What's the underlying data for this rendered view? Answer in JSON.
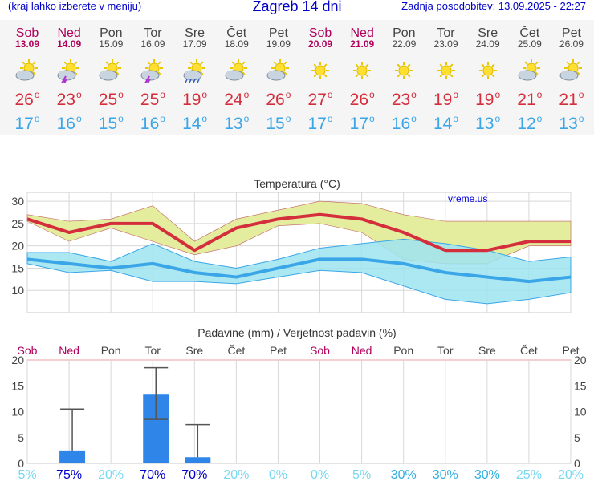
{
  "header": {
    "menu_hint": "(kraj lahko izberete v meniju)",
    "title": "Zagreb 14 dni",
    "updated": "Zadnja posodobitev: 13.09.2025 - 22:27"
  },
  "days": [
    {
      "name": "Sob",
      "date": "13.09",
      "weekend": true,
      "icon": "sun-cloud-icon",
      "max": "26",
      "min": "17"
    },
    {
      "name": "Ned",
      "date": "14.09",
      "weekend": true,
      "icon": "sun-thunder-icon",
      "max": "23",
      "min": "16"
    },
    {
      "name": "Pon",
      "date": "15.09",
      "weekend": false,
      "icon": "sun-cloud-icon",
      "max": "25",
      "min": "15"
    },
    {
      "name": "Tor",
      "date": "16.09",
      "weekend": false,
      "icon": "sun-thunder-icon",
      "max": "25",
      "min": "16"
    },
    {
      "name": "Sre",
      "date": "17.09",
      "weekend": false,
      "icon": "sun-rain-icon",
      "max": "19",
      "min": "14"
    },
    {
      "name": "Čet",
      "date": "18.09",
      "weekend": false,
      "icon": "sun-cloud-icon",
      "max": "24",
      "min": "13"
    },
    {
      "name": "Pet",
      "date": "19.09",
      "weekend": false,
      "icon": "sun-cloud-icon",
      "max": "26",
      "min": "15"
    },
    {
      "name": "Sob",
      "date": "20.09",
      "weekend": true,
      "icon": "sun-icon",
      "max": "27",
      "min": "17"
    },
    {
      "name": "Ned",
      "date": "21.09",
      "weekend": true,
      "icon": "sun-icon",
      "max": "26",
      "min": "17"
    },
    {
      "name": "Pon",
      "date": "22.09",
      "weekend": false,
      "icon": "sun-icon",
      "max": "23",
      "min": "16"
    },
    {
      "name": "Tor",
      "date": "23.09",
      "weekend": false,
      "icon": "sun-icon",
      "max": "19",
      "min": "14"
    },
    {
      "name": "Sre",
      "date": "24.09",
      "weekend": false,
      "icon": "sun-icon",
      "max": "19",
      "min": "13"
    },
    {
      "name": "Čet",
      "date": "25.09",
      "weekend": false,
      "icon": "sun-cloud-icon",
      "max": "21",
      "min": "12"
    },
    {
      "name": "Pet",
      "date": "26.09",
      "weekend": false,
      "icon": "sun-cloud-icon",
      "max": "21",
      "min": "13"
    }
  ],
  "colors": {
    "max_line": "#d42e3d",
    "min_line": "#3aa6e8",
    "max_band": "#e4ec9e",
    "min_band": "#9de4f0",
    "overlap": "#8ed88e",
    "precip_bar": "#2f86e8",
    "weekend": "#b0005a",
    "prob_low": "#78d8f0",
    "prob_high": "#0000c8"
  },
  "chart_data": [
    {
      "type": "line",
      "title": "Temperatura (°C)",
      "watermark": "vreme.us",
      "ylim": [
        5,
        32
      ],
      "yticks": [
        10,
        15,
        20,
        25,
        30
      ],
      "grid": true,
      "x": [
        "Sob",
        "Ned",
        "Pon",
        "Tor",
        "Sre",
        "Čet",
        "Pet",
        "Sob",
        "Ned",
        "Pon",
        "Tor",
        "Sre",
        "Čet",
        "Pet"
      ],
      "series": [
        {
          "values": [
            26,
            23,
            25,
            25,
            19,
            24,
            26,
            27,
            26,
            23,
            19,
            19,
            21,
            21
          ]
        },
        {
          "values": [
            17,
            16,
            15,
            16,
            14,
            13,
            15,
            17,
            17,
            16,
            14,
            13,
            12,
            13
          ]
        }
      ],
      "bands": [
        {
          "upper": [
            27,
            25.5,
            26,
            29,
            21,
            26,
            28,
            30,
            29.5,
            27,
            25.5,
            25.5,
            25.5,
            25.5
          ],
          "lower": [
            25.5,
            21,
            24,
            21,
            18,
            20,
            24.5,
            25,
            23,
            17,
            16,
            16,
            20,
            20
          ]
        },
        {
          "upper": [
            18.5,
            18.5,
            16.5,
            20.5,
            16.5,
            15,
            17,
            19.5,
            20.5,
            21.5,
            20.5,
            19,
            16.5,
            17.5
          ],
          "lower": [
            16,
            14,
            14.5,
            12,
            12,
            11.5,
            13,
            14.5,
            14,
            11,
            8,
            7,
            8,
            9.5
          ]
        }
      ]
    },
    {
      "type": "bar",
      "title": "Padavine (mm) / Verjetnost padavin (%)",
      "ylim": [
        0,
        20
      ],
      "yticks": [
        0,
        5,
        10,
        15,
        20
      ],
      "categories": [
        "Sob",
        "Ned",
        "Pon",
        "Tor",
        "Sre",
        "Čet",
        "Pet",
        "Sob",
        "Ned",
        "Pon",
        "Tor",
        "Sre",
        "Čet",
        "Pet"
      ],
      "values": [
        0,
        2.5,
        0,
        13.3,
        1.2,
        0,
        0,
        0,
        0,
        0,
        0,
        0,
        0,
        0
      ],
      "error_high": [
        0,
        10.5,
        0,
        18.5,
        7.5,
        0,
        0,
        0,
        0,
        0,
        0,
        0,
        0,
        0
      ],
      "error_low": [
        0,
        0,
        0,
        8.5,
        0,
        0,
        0,
        0,
        0,
        0,
        0,
        0,
        0,
        0
      ],
      "probability": [
        "5%",
        "75%",
        "20%",
        "70%",
        "70%",
        "20%",
        "0%",
        "0%",
        "5%",
        "30%",
        "30%",
        "30%",
        "25%",
        "20%"
      ]
    }
  ]
}
